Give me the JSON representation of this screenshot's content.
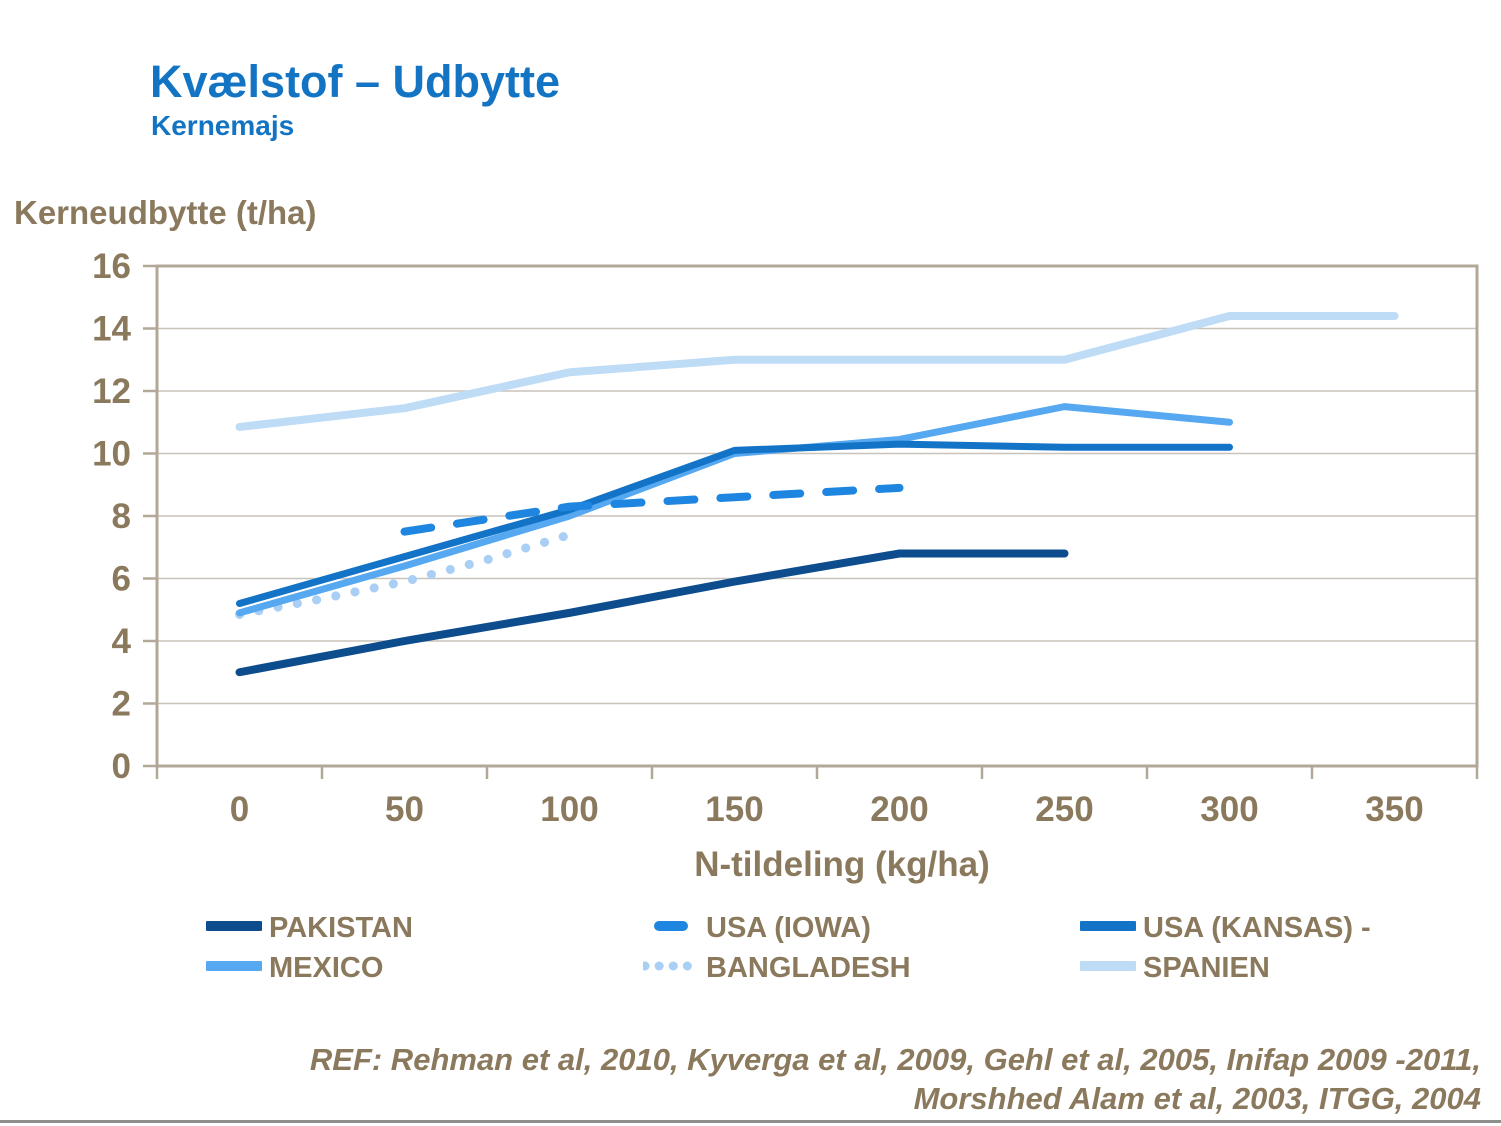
{
  "slide": {
    "title": "Kvælstof – Udbytte",
    "subtitle": "Kernemajs"
  },
  "chart_data": {
    "type": "line",
    "title": "",
    "y_axis_title": "Kerneudbytte (t/ha)",
    "x_axis_title": "N-tildeling (kg/ha)",
    "x_ticks": [
      0,
      50,
      100,
      150,
      200,
      250,
      300,
      350
    ],
    "y_ticks": [
      0,
      2,
      4,
      6,
      8,
      10,
      12,
      14,
      16
    ],
    "xlim": [
      0,
      350
    ],
    "ylim": [
      0,
      16
    ],
    "grid": "horizontal",
    "legend_position": "bottom",
    "series": [
      {
        "name": "PAKISTAN",
        "color": "#0E4D8D",
        "style": "solid",
        "x": [
          0,
          50,
          100,
          150,
          200,
          250
        ],
        "values": [
          3.0,
          4.0,
          4.9,
          5.9,
          6.8,
          6.8
        ]
      },
      {
        "name": "USA (IOWA)",
        "color": "#1E86E0",
        "style": "dashed",
        "x": [
          50,
          100,
          150,
          200
        ],
        "values": [
          7.5,
          8.3,
          8.6,
          8.9
        ]
      },
      {
        "name": "USA (KANSAS) -",
        "color": "#1273C7",
        "style": "solid",
        "x": [
          0,
          50,
          100,
          150,
          200,
          250,
          300
        ],
        "values": [
          5.2,
          6.7,
          8.2,
          10.1,
          10.3,
          10.2,
          10.2
        ]
      },
      {
        "name": "MEXICO",
        "color": "#56A8F1",
        "style": "solid",
        "x": [
          0,
          50,
          100,
          150,
          200,
          250,
          300
        ],
        "values": [
          4.9,
          6.4,
          8.0,
          10.0,
          10.45,
          11.5,
          11.0
        ]
      },
      {
        "name": "BANGLADESH",
        "color": "#A9CFF5",
        "style": "dotted",
        "x": [
          0,
          25,
          50,
          75,
          100
        ],
        "values": [
          4.85,
          5.35,
          5.9,
          6.6,
          7.4
        ]
      },
      {
        "name": "SPANIEN",
        "color": "#BFDCF6",
        "style": "solid",
        "x": [
          0,
          50,
          100,
          150,
          200,
          250,
          300,
          350
        ],
        "values": [
          10.85,
          11.45,
          12.6,
          13.0,
          13.0,
          13.0,
          14.4,
          14.4
        ]
      }
    ]
  },
  "reference": {
    "line1": "REF: Rehman et al, 2010, Kyverga et al, 2009, Gehl et al, 2005, Inifap 2009 -2011,",
    "line2": "Morshhed Alam et al, 2003, ITGG, 2004"
  },
  "colors": {
    "title_blue": "#1474C4",
    "text_brown": "#8A795C",
    "axis_line": "#B3A897",
    "gridline": "#C9C4BA",
    "bottom_rule": "#8E8E8E"
  }
}
